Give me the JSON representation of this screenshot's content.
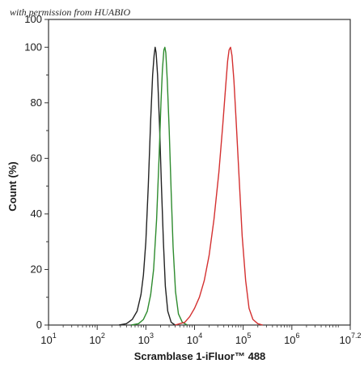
{
  "watermark": "with permission from HUABIO",
  "chart_data": {
    "type": "line",
    "xlabel": "Scramblase 1-iFluor™ 488",
    "ylabel": "Count (%)",
    "x_scale": "log10",
    "xlim_exp": [
      1,
      7.2
    ],
    "ylim": [
      0,
      100
    ],
    "x_ticks": [
      {
        "base": "10",
        "exp": "1"
      },
      {
        "base": "10",
        "exp": "2"
      },
      {
        "base": "10",
        "exp": "3"
      },
      {
        "base": "10",
        "exp": "4"
      },
      {
        "base": "10",
        "exp": "5"
      },
      {
        "base": "10",
        "exp": "6"
      },
      {
        "base": "10",
        "exp": "7.2"
      }
    ],
    "y_ticks": [
      "0",
      "20",
      "40",
      "60",
      "80",
      "100"
    ],
    "y_top_tick": "100",
    "series": [
      {
        "color": "#222222",
        "points": [
          [
            2.45,
            0
          ],
          [
            2.6,
            0.5
          ],
          [
            2.72,
            2
          ],
          [
            2.82,
            5
          ],
          [
            2.9,
            11
          ],
          [
            2.95,
            18
          ],
          [
            3.0,
            30
          ],
          [
            3.05,
            50
          ],
          [
            3.1,
            74
          ],
          [
            3.14,
            90
          ],
          [
            3.17,
            97
          ],
          [
            3.19,
            100
          ],
          [
            3.21,
            98
          ],
          [
            3.24,
            90
          ],
          [
            3.28,
            72
          ],
          [
            3.32,
            50
          ],
          [
            3.36,
            30
          ],
          [
            3.4,
            14
          ],
          [
            3.45,
            5
          ],
          [
            3.52,
            1
          ],
          [
            3.6,
            0
          ]
        ]
      },
      {
        "color": "#2e8b2e",
        "points": [
          [
            2.7,
            0
          ],
          [
            2.85,
            0.5
          ],
          [
            2.95,
            2
          ],
          [
            3.03,
            5
          ],
          [
            3.1,
            11
          ],
          [
            3.16,
            20
          ],
          [
            3.22,
            38
          ],
          [
            3.27,
            60
          ],
          [
            3.31,
            80
          ],
          [
            3.34,
            92
          ],
          [
            3.37,
            99
          ],
          [
            3.39,
            100
          ],
          [
            3.41,
            98
          ],
          [
            3.44,
            88
          ],
          [
            3.48,
            70
          ],
          [
            3.52,
            48
          ],
          [
            3.56,
            28
          ],
          [
            3.61,
            12
          ],
          [
            3.67,
            4
          ],
          [
            3.75,
            1
          ],
          [
            3.85,
            0
          ]
        ]
      },
      {
        "color": "#d43030",
        "points": [
          [
            3.6,
            0
          ],
          [
            3.8,
            1
          ],
          [
            3.9,
            3
          ],
          [
            4.0,
            6
          ],
          [
            4.1,
            10
          ],
          [
            4.2,
            16
          ],
          [
            4.3,
            25
          ],
          [
            4.4,
            38
          ],
          [
            4.5,
            55
          ],
          [
            4.58,
            72
          ],
          [
            4.64,
            86
          ],
          [
            4.68,
            95
          ],
          [
            4.71,
            99
          ],
          [
            4.74,
            100
          ],
          [
            4.77,
            97
          ],
          [
            4.81,
            88
          ],
          [
            4.86,
            72
          ],
          [
            4.92,
            52
          ],
          [
            4.98,
            32
          ],
          [
            5.05,
            16
          ],
          [
            5.12,
            6
          ],
          [
            5.2,
            2
          ],
          [
            5.3,
            0.5
          ],
          [
            5.4,
            0
          ]
        ]
      }
    ]
  }
}
